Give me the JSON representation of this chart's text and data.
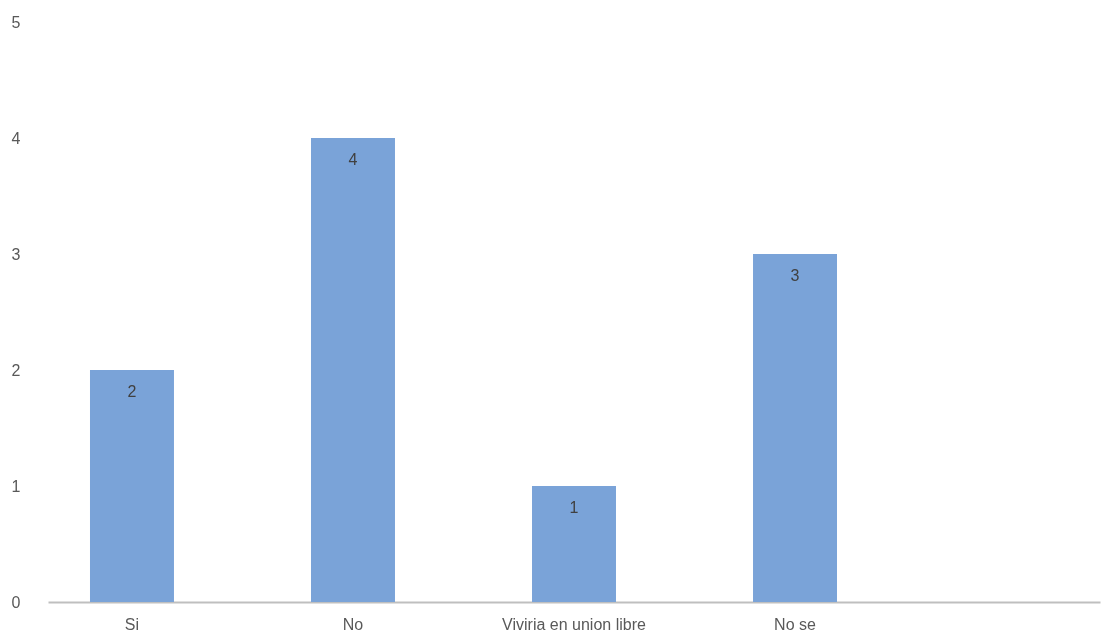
{
  "chart_data": {
    "type": "bar",
    "categories": [
      "Si",
      "No",
      "Viviria en union libre",
      "No se",
      null
    ],
    "values": [
      2,
      4,
      1,
      3,
      null
    ],
    "color": "#7aa3d8",
    "ylim": [
      0,
      5
    ],
    "yticks": [
      0,
      1,
      2,
      3,
      4,
      5
    ],
    "grid": false,
    "data_labels": true
  }
}
